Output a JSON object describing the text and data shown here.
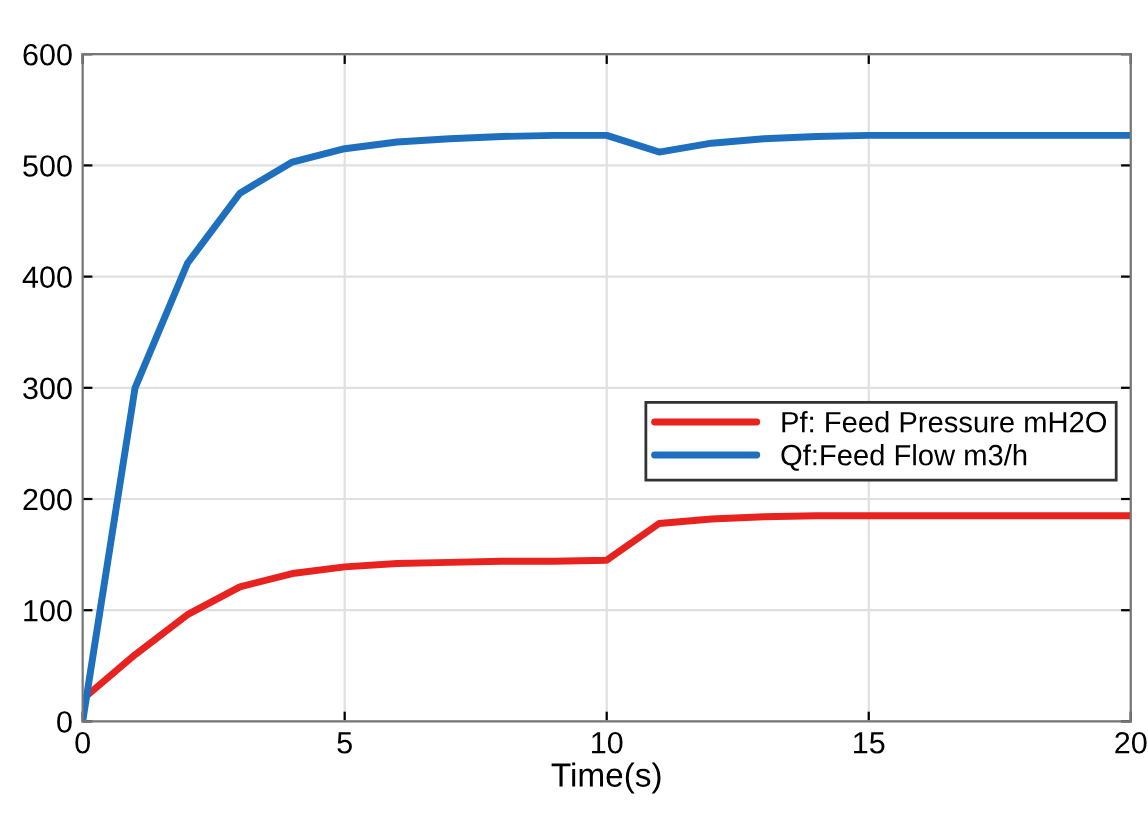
{
  "chart_data": {
    "type": "line",
    "xlabel": "Time(s)",
    "xlim": [
      0,
      20
    ],
    "xticks": [
      0,
      5,
      10,
      15,
      20
    ],
    "ylim": [
      0,
      600
    ],
    "yticks": [
      0,
      100,
      200,
      300,
      400,
      500,
      600
    ],
    "grid": true,
    "legend": "right",
    "line_style": "solid",
    "x": [
      0,
      1,
      2,
      3,
      4,
      5,
      6,
      7,
      8,
      9,
      10,
      11,
      12,
      13,
      14,
      15,
      16,
      17,
      18,
      19,
      20
    ],
    "series": [
      {
        "name": "Pf: Feed Pressure mH2O",
        "color": "#e8231f",
        "values": [
          20,
          60,
          96,
          121,
          133,
          139,
          142,
          143,
          144,
          144,
          145,
          178,
          182,
          184,
          185,
          185,
          185,
          185,
          185,
          185,
          185
        ]
      },
      {
        "name": "Qf:Feed Flow m3/h",
        "color": "#1f6fbf",
        "values": [
          0,
          300,
          412,
          475,
          503,
          515,
          521,
          524,
          526,
          527,
          527,
          512,
          520,
          524,
          526,
          527,
          527,
          527,
          527,
          527,
          527
        ]
      }
    ]
  }
}
